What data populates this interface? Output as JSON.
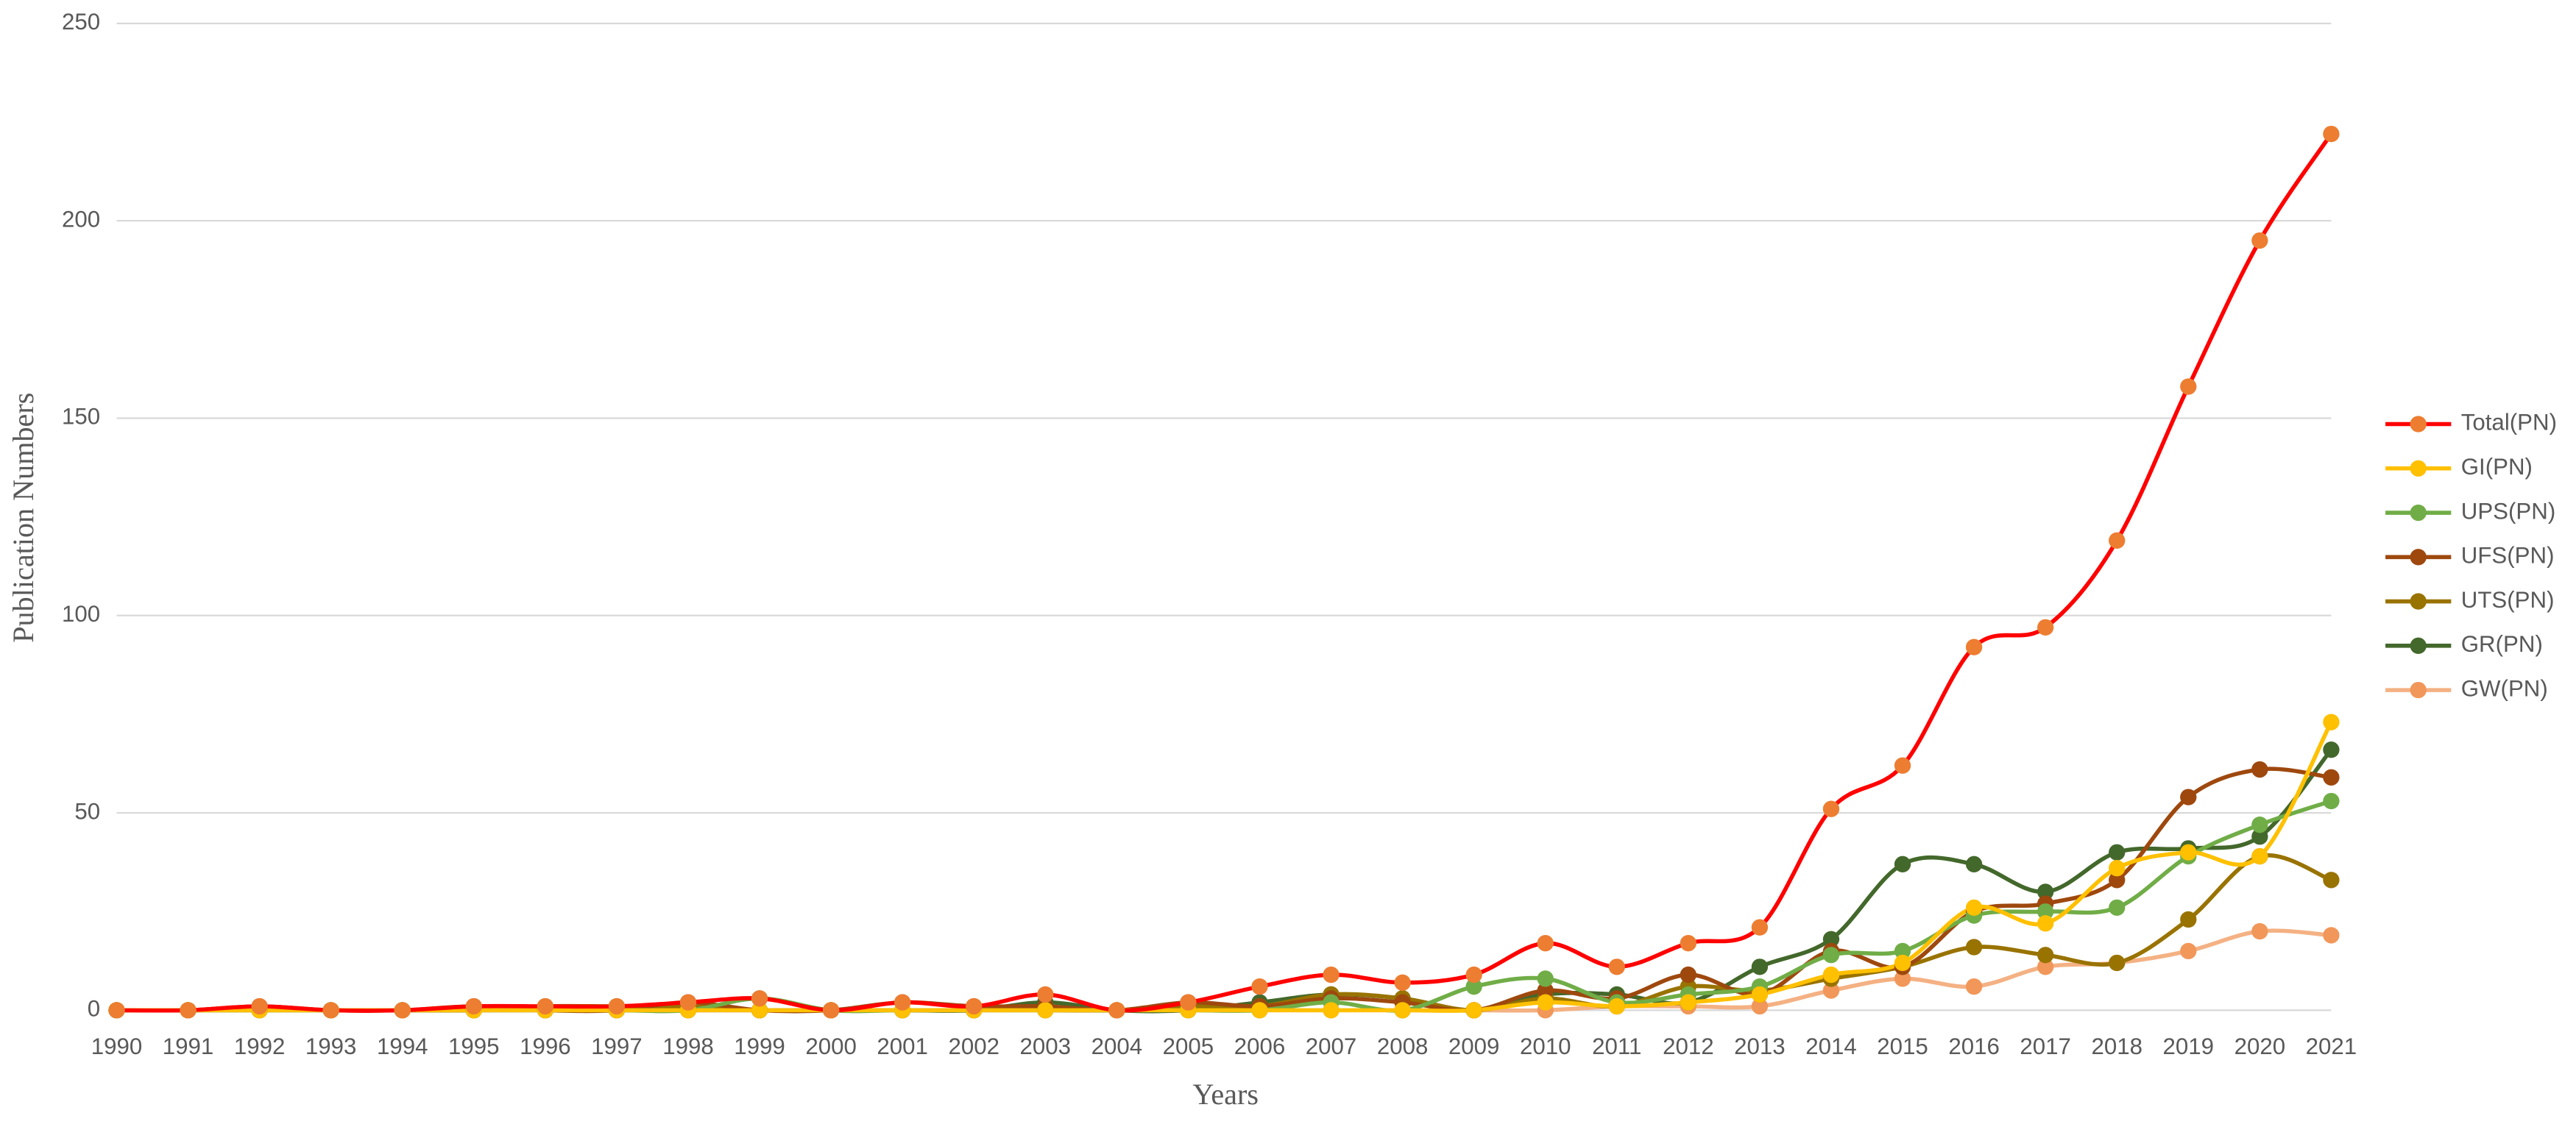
{
  "chart_data": {
    "type": "line",
    "x_label": "Years",
    "y_label": "Publication Numbers",
    "categories": [
      "1990",
      "1991",
      "1992",
      "1993",
      "1994",
      "1995",
      "1996",
      "1997",
      "1998",
      "1999",
      "2000",
      "2001",
      "2002",
      "2003",
      "2004",
      "2005",
      "2006",
      "2007",
      "2008",
      "2009",
      "2010",
      "2011",
      "2012",
      "2013",
      "2014",
      "2015",
      "2016",
      "2017",
      "2018",
      "2019",
      "2020",
      "2021"
    ],
    "ylim": [
      0,
      250
    ],
    "yticks": [
      0,
      50,
      100,
      150,
      200,
      250
    ],
    "grid": true,
    "legend": "right",
    "smooth": true,
    "series": [
      {
        "name": "Total(PN)",
        "color": "#ff0000",
        "marker_color": "#ed7d31",
        "values": [
          0,
          0,
          1,
          0,
          0,
          1,
          1,
          1,
          2,
          3,
          0,
          2,
          1,
          4,
          0,
          2,
          6,
          9,
          7,
          9,
          17,
          11,
          17,
          21,
          51,
          62,
          92,
          97,
          119,
          158,
          195,
          222
        ]
      },
      {
        "name": "GI(PN)",
        "color": "#ffc000",
        "marker_color": "#ffc000",
        "values": [
          0,
          0,
          0,
          0,
          0,
          0,
          0,
          0,
          0,
          0,
          0,
          0,
          0,
          0,
          0,
          0,
          0,
          0,
          0,
          0,
          2,
          1,
          2,
          4,
          9,
          12,
          26,
          22,
          36,
          40,
          39,
          73
        ]
      },
      {
        "name": "UPS(PN)",
        "color": "#70ad47",
        "marker_color": "#70ad47",
        "values": [
          0,
          0,
          0,
          0,
          0,
          0,
          0,
          0,
          0,
          3,
          0,
          0,
          0,
          0,
          0,
          0,
          0,
          2,
          0,
          6,
          8,
          2,
          4,
          6,
          14,
          15,
          24,
          25,
          26,
          39,
          47,
          53
        ]
      },
      {
        "name": "UFS(PN)",
        "color": "#9e480e",
        "marker_color": "#9e480e",
        "values": [
          0,
          0,
          1,
          0,
          0,
          1,
          0,
          0,
          2,
          0,
          0,
          2,
          1,
          1,
          0,
          2,
          1,
          3,
          2,
          0,
          5,
          3,
          9,
          4,
          15,
          11,
          25,
          27,
          33,
          54,
          61,
          59
        ]
      },
      {
        "name": "UTS(PN)",
        "color": "#997300",
        "marker_color": "#997300",
        "values": [
          0,
          0,
          0,
          0,
          0,
          0,
          1,
          1,
          1,
          0,
          0,
          0,
          0,
          0,
          0,
          1,
          1,
          4,
          3,
          0,
          3,
          1,
          6,
          5,
          8,
          11,
          16,
          14,
          12,
          23,
          39,
          33
        ]
      },
      {
        "name": "GR(PN)",
        "color": "#43682b",
        "marker_color": "#43682b",
        "values": [
          0,
          0,
          0,
          0,
          0,
          0,
          0,
          0,
          0,
          0,
          0,
          0,
          0,
          2,
          0,
          0,
          2,
          4,
          3,
          0,
          4,
          4,
          2,
          11,
          18,
          37,
          37,
          30,
          40,
          41,
          44,
          66
        ]
      },
      {
        "name": "GW(PN)",
        "color": "#f4b183",
        "marker_color": "#f1975a",
        "values": [
          0,
          0,
          0,
          0,
          0,
          0,
          0,
          0,
          0,
          0,
          0,
          0,
          0,
          0,
          0,
          0,
          0,
          0,
          0,
          0,
          0,
          1,
          1,
          1,
          5,
          8,
          6,
          11,
          12,
          15,
          20,
          19
        ]
      }
    ]
  }
}
